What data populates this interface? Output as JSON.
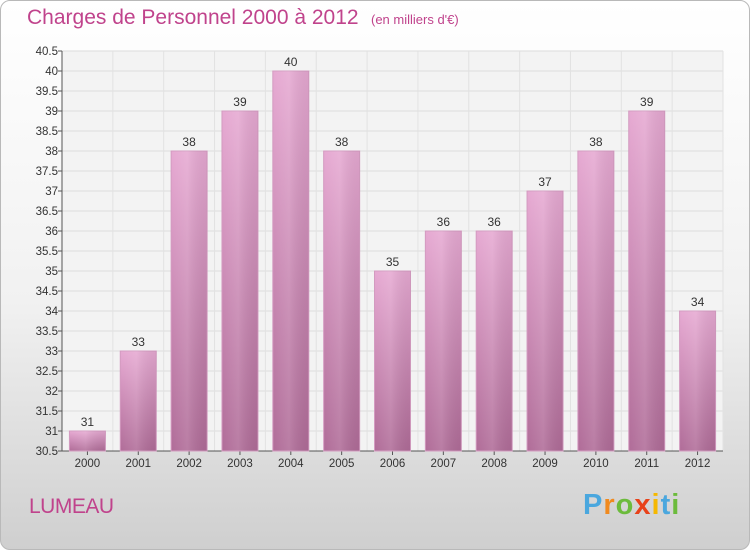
{
  "title": "Charges de Personnel 2000 à 2012",
  "subtitle": "(en milliers d'€)",
  "commune": "LUMEAU",
  "brand": {
    "letters": [
      "P",
      "r",
      "o",
      "x",
      "i",
      "t",
      "i"
    ],
    "colors": [
      "#4aa7de",
      "#f08a1f",
      "#6cbb3c",
      "#e8421a",
      "#f5b800",
      "#4aa7de",
      "#6cbb3c"
    ]
  },
  "colors": {
    "accent": "#c0438c",
    "bar_top": "#e6a9d2",
    "bar_bottom": "#b06c98"
  },
  "chart_data": {
    "type": "bar",
    "title": "Charges de Personnel 2000 à 2012",
    "subtitle": "(en milliers d'€)",
    "categories": [
      "2000",
      "2001",
      "2002",
      "2003",
      "2004",
      "2005",
      "2006",
      "2007",
      "2008",
      "2009",
      "2010",
      "2011",
      "2012"
    ],
    "values": [
      31,
      33,
      38,
      39,
      40,
      38,
      35,
      36,
      36,
      37,
      38,
      39,
      34
    ],
    "value_labels": [
      "31",
      "33",
      "38",
      "39",
      "40",
      "38",
      "35",
      "36",
      "36",
      "37",
      "38",
      "39",
      "34"
    ],
    "ylim": [
      30.5,
      40.5
    ],
    "yticks": [
      "30.5",
      "31",
      "31.5",
      "32",
      "32.5",
      "33",
      "33.5",
      "34",
      "34.5",
      "35",
      "35.5",
      "36",
      "36.5",
      "37",
      "37.5",
      "38",
      "38.5",
      "39",
      "39.5",
      "40",
      "40.5"
    ],
    "grid": true,
    "legend": "none"
  }
}
